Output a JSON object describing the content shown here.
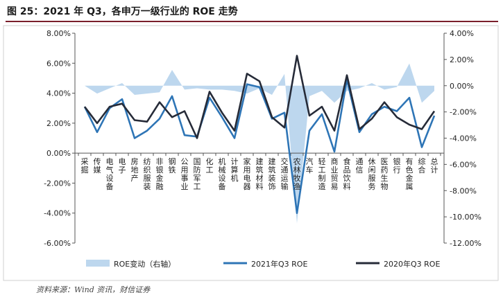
{
  "header": {
    "title": "图 25：2021 年 Q3，各申万一级行业的 ROE 走势"
  },
  "source_note": "资料来源：Wind 资讯，财信证券",
  "colors": {
    "roe_change": "#bdd7ee",
    "roe_2021q3": "#2e75b6",
    "roe_2020q3": "#262b38",
    "title_rule": "#7a1f2b"
  },
  "chart_data": {
    "type": "line",
    "title": "2021 年 Q3，各申万一级行业的 ROE 走势",
    "categories": [
      "采掘",
      "传媒",
      "电气设备",
      "电子",
      "房地产",
      "纺织服装",
      "非银金融",
      "钢铁",
      "公用事业",
      "国防军工",
      "化工",
      "机械设备",
      "计算机",
      "家用电器",
      "建筑材料",
      "建筑装饰",
      "交通运输",
      "农林牧渔",
      "汽车",
      "轻工制造",
      "商业贸易",
      "食品饮料",
      "通信",
      "休闲服务",
      "医药生物",
      "银行",
      "有色金属",
      "综合",
      "总计"
    ],
    "left_axis": {
      "ylim": [
        -6,
        8
      ],
      "ticks": [
        -6,
        -4,
        -2,
        0,
        2,
        4,
        6,
        8
      ],
      "tick_labels": [
        "-6.00%",
        "-4.00%",
        "-2.00%",
        "0.00%",
        "2.00%",
        "4.00%",
        "6.00%",
        "8.00%"
      ]
    },
    "right_axis": {
      "ylim": [
        -12,
        4
      ],
      "ticks": [
        -12,
        -10,
        -8,
        -6,
        -4,
        -2,
        0,
        2,
        4
      ],
      "tick_labels": [
        "-12.00%",
        "-10.00%",
        "-8.00%",
        "-6.00%",
        "-4.00%",
        "-2.00%",
        "0.00%",
        "2.00%",
        "4.00%"
      ]
    },
    "series": [
      {
        "name": "ROE变动（右轴）",
        "type": "area",
        "axis": "right",
        "values": [
          0.0,
          -0.6,
          -0.2,
          0.2,
          -0.7,
          -0.6,
          -0.5,
          1.2,
          -0.3,
          -0.2,
          -0.3,
          -0.3,
          -0.4,
          -0.6,
          -0.2,
          -0.7,
          0.9,
          -10.5,
          -0.8,
          -0.4,
          -1.3,
          -0.4,
          -0.2,
          0.2,
          -0.3,
          -0.1,
          1.7,
          -1.3,
          -0.4
        ]
      },
      {
        "name": "2021年Q3 ROE",
        "type": "line",
        "axis": "left",
        "values": [
          3.1,
          1.4,
          3.0,
          3.6,
          1.0,
          1.5,
          2.3,
          3.8,
          1.2,
          1.1,
          3.7,
          2.4,
          1.0,
          4.6,
          4.4,
          2.3,
          2.7,
          -4.0,
          1.5,
          2.6,
          0.1,
          4.9,
          1.4,
          2.6,
          3.1,
          2.8,
          3.7,
          0.4,
          2.5
        ]
      },
      {
        "name": "2020年Q3 ROE",
        "type": "line",
        "axis": "left",
        "values": [
          3.1,
          2.0,
          3.1,
          3.3,
          2.2,
          2.1,
          3.4,
          2.4,
          2.8,
          1.0,
          4.1,
          2.7,
          1.5,
          5.3,
          4.8,
          2.4,
          1.7,
          6.5,
          2.5,
          3.1,
          1.5,
          5.2,
          1.6,
          2.3,
          3.4,
          2.4,
          1.9,
          1.6,
          2.8
        ]
      }
    ],
    "legend": {
      "position": "bottom",
      "items": [
        "ROE变动（右轴）",
        "2021年Q3 ROE",
        "2020年Q3 ROE"
      ]
    },
    "grid": false
  }
}
